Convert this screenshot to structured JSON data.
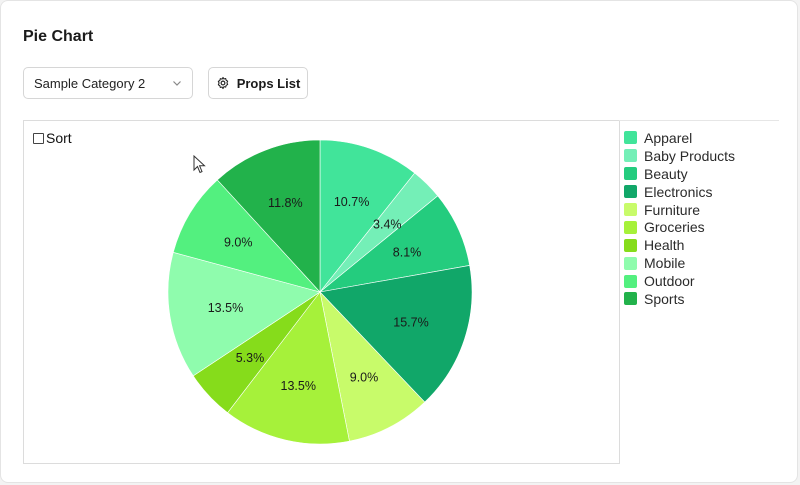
{
  "page_title": "Pie Chart",
  "category_select": {
    "value": "Sample Category 2"
  },
  "props_button": {
    "label": "Props List"
  },
  "sort": {
    "label": "Sort",
    "checked": false
  },
  "chart_data": {
    "type": "pie",
    "slices": [
      {
        "label": "Apparel",
        "value": 10.7,
        "display": "10.7%",
        "color": "#41e49a"
      },
      {
        "label": "Baby Products",
        "value": 3.4,
        "display": "3.4%",
        "color": "#74efb7"
      },
      {
        "label": "Beauty",
        "value": 8.1,
        "display": "8.1%",
        "color": "#24cc7e"
      },
      {
        "label": "Electronics",
        "value": 15.7,
        "display": "15.7%",
        "color": "#11a769"
      },
      {
        "label": "Furniture",
        "value": 9.0,
        "display": "9.0%",
        "color": "#c8fb6a"
      },
      {
        "label": "Groceries",
        "value": 13.5,
        "display": "13.5%",
        "color": "#a6f13a"
      },
      {
        "label": "Health",
        "value": 5.3,
        "display": "5.3%",
        "color": "#86dc1b"
      },
      {
        "label": "Mobile",
        "value": 13.5,
        "display": "13.5%",
        "color": "#8ffcad"
      },
      {
        "label": "Outdoor",
        "value": 9.0,
        "display": "9.0%",
        "color": "#53f07f"
      },
      {
        "label": "Sports",
        "value": 11.8,
        "display": "11.8%",
        "color": "#22b24b"
      }
    ],
    "start": "top, clockwise",
    "legend_position": "right"
  }
}
